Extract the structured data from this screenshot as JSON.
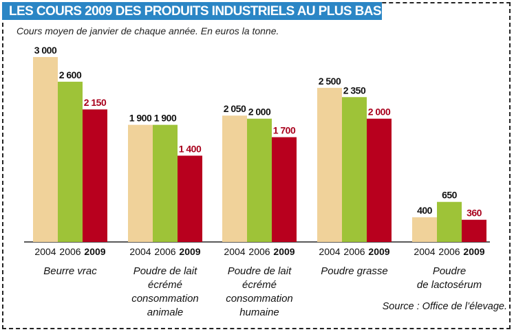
{
  "title": "LES COURS 2009 DES PRODUITS INDUSTRIELS AU PLUS BAS",
  "subtitle": "Cours moyen de janvier de chaque année. En euros la tonne.",
  "source": "Source : Office de l’élevage.",
  "colors": {
    "title_bg": "#2b86c5",
    "y2004": "#f0d29a",
    "y2006": "#9ec338",
    "y2009": "#b8001e",
    "label_2009": "#a8001c"
  },
  "chart_data": {
    "type": "bar",
    "title": "LES COURS 2009 DES PRODUITS INDUSTRIELS AU PLUS BAS",
    "subtitle": "Cours moyen de janvier de chaque année. En euros la tonne.",
    "xlabel": "",
    "ylabel": "",
    "ylim": [
      0,
      3000
    ],
    "grid": false,
    "legend": "none",
    "categories": [
      [
        "Beurre vrac"
      ],
      [
        "Poudre de lait",
        "écrémé",
        "consommation",
        "animale"
      ],
      [
        "Poudre de lait",
        "écrémé",
        "consommation",
        "humaine"
      ],
      [
        "Poudre grasse"
      ],
      [
        "Poudre",
        "de lactosérum"
      ]
    ],
    "series": [
      {
        "name": "2004",
        "values": [
          3000,
          1900,
          2050,
          2500,
          400
        ],
        "labels": [
          "3 000",
          "1 900",
          "2 050",
          "2 500",
          "400"
        ]
      },
      {
        "name": "2006",
        "values": [
          2600,
          1900,
          2000,
          2350,
          650
        ],
        "labels": [
          "2 600",
          "1 900",
          "2 000",
          "2 350",
          "650"
        ]
      },
      {
        "name": "2009",
        "values": [
          2150,
          1400,
          1700,
          2000,
          360
        ],
        "labels": [
          "2 150",
          "1 400",
          "1 700",
          "2 000",
          "360"
        ]
      }
    ]
  }
}
